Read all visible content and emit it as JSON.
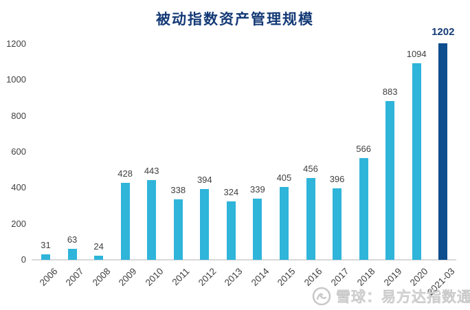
{
  "chart_data": {
    "type": "bar",
    "title": "被动指数资产管理规模",
    "categories": [
      "2006",
      "2007",
      "2008",
      "2009",
      "2010",
      "2011",
      "2012",
      "2013",
      "2014",
      "2015",
      "2016",
      "2017",
      "2018",
      "2019",
      "2020",
      "2021-03"
    ],
    "values": [
      31,
      63,
      24,
      428,
      443,
      338,
      394,
      324,
      339,
      405,
      456,
      396,
      566,
      883,
      1094,
      1202
    ],
    "xlabel": "",
    "ylabel": "",
    "ylim": [
      0,
      1200
    ],
    "yticks": [
      0,
      200,
      400,
      600,
      800,
      1000,
      1200
    ],
    "grid": false,
    "legend_position": "none",
    "colors": {
      "bar": "#2fb4da",
      "highlight_bar": "#0e4d8e",
      "title": "#143a76",
      "highlight_label": "#143a76",
      "label": "#3f3f3f",
      "axis_line": "#d8d8d8"
    },
    "highlight_index": 15
  },
  "watermark": {
    "text": "雪球：易方达指数通",
    "icon": "xueqiu-snowball-icon",
    "color": "#c6c6c6"
  }
}
